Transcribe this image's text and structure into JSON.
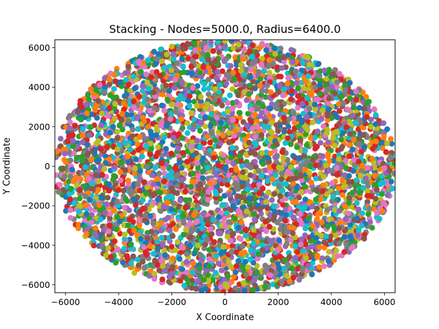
{
  "chart_data": {
    "type": "scatter",
    "title": "Stacking - Nodes=5000.0, Radius=6400.0",
    "xlabel": "X Coordinate",
    "ylabel": "Y Coordinate",
    "xlim": [
      -6400,
      6400
    ],
    "ylim": [
      -6400,
      6400
    ],
    "x_ticks": [
      -6000,
      -4000,
      -2000,
      0,
      2000,
      4000,
      6000
    ],
    "y_ticks": [
      -6000,
      -4000,
      -2000,
      0,
      2000,
      4000,
      6000
    ],
    "x_tick_labels": [
      "−6000",
      "−4000",
      "−2000",
      "0",
      "2000",
      "4000",
      "6000"
    ],
    "y_tick_labels": [
      "−6000",
      "−4000",
      "−2000",
      "0",
      "2000",
      "4000",
      "6000"
    ],
    "grid": false,
    "legend": "none",
    "node_count": 5000,
    "radius": 6400,
    "distribution": "uniform random within circle of radius 6400, one point per node",
    "palette": [
      "#1f77b4",
      "#ff7f0e",
      "#2ca02c",
      "#d62728",
      "#9467bd",
      "#8c564b",
      "#e377c2",
      "#7f7f7f",
      "#bcbd22",
      "#17becf"
    ]
  }
}
